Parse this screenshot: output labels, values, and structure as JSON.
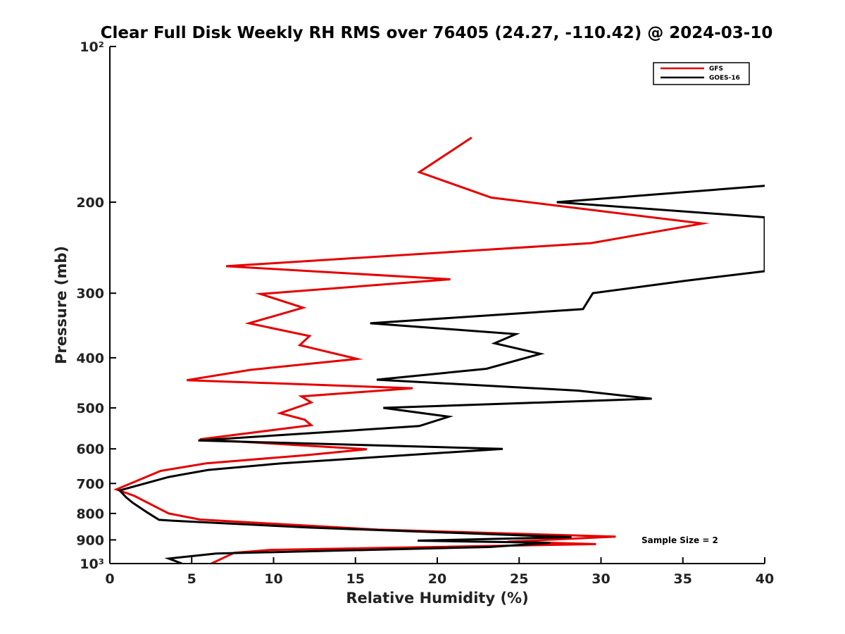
{
  "chart_data": {
    "type": "line",
    "title": "Clear Full Disk Weekly RH RMS over 76405 (24.27, -110.42) @ 2024-03-10",
    "xlabel": "Relative Humidity (%)",
    "ylabel": "Pressure (mb)",
    "xlim": [
      0,
      40
    ],
    "ylim": [
      100,
      1000
    ],
    "yscale": "log",
    "y_reversed": true,
    "x_ticks": [
      0,
      5,
      10,
      15,
      20,
      25,
      30,
      35,
      40
    ],
    "x_tick_labels": [
      "0",
      "5",
      "10",
      "15",
      "20",
      "25",
      "30",
      "35",
      "40"
    ],
    "y_ticks": [
      100,
      200,
      300,
      400,
      500,
      600,
      700,
      800,
      900,
      1000
    ],
    "y_tick_labels": [
      "10²",
      "200",
      "300",
      "400",
      "500",
      "600",
      "700",
      "800",
      "900",
      "10³"
    ],
    "grid": false,
    "legend_position": "top-right",
    "annotation": "Sample Size = 2",
    "series": [
      {
        "name": "GFS",
        "color": "#e60000",
        "points": [
          [
            22.1,
            150
          ],
          [
            18.9,
            175
          ],
          [
            23.3,
            196
          ],
          [
            36.2,
            220
          ],
          [
            29.4,
            240
          ],
          [
            7.1,
            266
          ],
          [
            20.8,
            282
          ],
          [
            9.2,
            301
          ],
          [
            11.8,
            320
          ],
          [
            8.5,
            343
          ],
          [
            12.2,
            363
          ],
          [
            11.6,
            378
          ],
          [
            15.1,
            402
          ],
          [
            8.6,
            422
          ],
          [
            4.7,
            442
          ],
          [
            18.5,
            458
          ],
          [
            11.7,
            475
          ],
          [
            12.3,
            488
          ],
          [
            10.4,
            512
          ],
          [
            11.9,
            527
          ],
          [
            12.3,
            540
          ],
          [
            5.5,
            575
          ],
          [
            15.7,
            601
          ],
          [
            12.0,
            617
          ],
          [
            5.9,
            640
          ],
          [
            3.1,
            662
          ],
          [
            0.4,
            719
          ],
          [
            1.5,
            740
          ],
          [
            3.6,
            800
          ],
          [
            5.5,
            822
          ],
          [
            16.4,
            860
          ],
          [
            30.9,
            887
          ],
          [
            24.3,
            907
          ],
          [
            29.7,
            917
          ],
          [
            9.8,
            941
          ],
          [
            7.6,
            953
          ],
          [
            6.2,
            1000
          ]
        ]
      },
      {
        "name": "GOES-16",
        "color": "#000000",
        "points": [
          [
            40.0,
            186
          ],
          [
            27.3,
            200
          ],
          [
            40.0,
            214
          ],
          [
            40.0,
            272
          ],
          [
            35.1,
            284
          ],
          [
            29.5,
            300
          ],
          [
            28.9,
            322
          ],
          [
            15.9,
            343
          ],
          [
            24.8,
            360
          ],
          [
            23.5,
            375
          ],
          [
            26.3,
            393
          ],
          [
            23.0,
            420
          ],
          [
            16.3,
            441
          ],
          [
            28.6,
            463
          ],
          [
            33.1,
            480
          ],
          [
            16.7,
            500
          ],
          [
            20.7,
            520
          ],
          [
            18.9,
            542
          ],
          [
            5.4,
            578
          ],
          [
            24.0,
            600
          ],
          [
            10.5,
            640
          ],
          [
            6.0,
            659
          ],
          [
            3.6,
            680
          ],
          [
            0.6,
            722
          ],
          [
            1.0,
            745
          ],
          [
            1.4,
            763
          ],
          [
            2.3,
            797
          ],
          [
            3.0,
            823
          ],
          [
            3.8,
            826
          ],
          [
            12.2,
            852
          ],
          [
            28.2,
            889
          ],
          [
            18.8,
            903
          ],
          [
            26.9,
            912
          ],
          [
            23.2,
            929
          ],
          [
            6.5,
            956
          ],
          [
            3.6,
            978
          ],
          [
            4.4,
            1000
          ]
        ]
      }
    ]
  }
}
